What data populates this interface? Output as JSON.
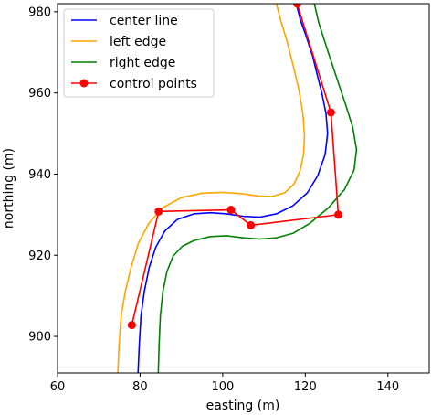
{
  "chart_data": {
    "type": "line",
    "title": "",
    "xlabel": "easting (m)",
    "ylabel": "northing (m)",
    "xlim": [
      60,
      150
    ],
    "ylim": [
      891,
      982
    ],
    "xticks": [
      60,
      80,
      100,
      120,
      140
    ],
    "yticks": [
      900,
      920,
      940,
      960,
      980
    ],
    "grid": false,
    "legend_placement": "top-left",
    "series": [
      {
        "name": "center line",
        "color": "#0000ff",
        "marker": "none",
        "points": [
          [
            79.5,
            891
          ],
          [
            79.8,
            898
          ],
          [
            80.2,
            905
          ],
          [
            81,
            911
          ],
          [
            82.2,
            917
          ],
          [
            83.8,
            922
          ],
          [
            86,
            926
          ],
          [
            89,
            928.8
          ],
          [
            93,
            930.2
          ],
          [
            97,
            930.5
          ],
          [
            101,
            930.2
          ],
          [
            105,
            929.6
          ],
          [
            109,
            929.4
          ],
          [
            113,
            930.2
          ],
          [
            117,
            932.2
          ],
          [
            120.5,
            935.4
          ],
          [
            123,
            939.6
          ],
          [
            124.8,
            944.8
          ],
          [
            125.4,
            950
          ],
          [
            125,
            955
          ],
          [
            124,
            960
          ],
          [
            123,
            964
          ],
          [
            121.8,
            969
          ],
          [
            120.2,
            974
          ],
          [
            118.8,
            978
          ],
          [
            117.8,
            982
          ]
        ]
      },
      {
        "name": "left edge",
        "color": "#ffa500",
        "marker": "none",
        "points": [
          [
            74.6,
            891
          ],
          [
            74.9,
            898
          ],
          [
            75.4,
            905
          ],
          [
            76.4,
            911
          ],
          [
            77.8,
            917
          ],
          [
            79.6,
            923
          ],
          [
            82.2,
            928
          ],
          [
            85.6,
            931.8
          ],
          [
            90,
            934.2
          ],
          [
            95,
            935.3
          ],
          [
            100,
            935.5
          ],
          [
            104.5,
            935.2
          ],
          [
            108.5,
            934.6
          ],
          [
            112,
            934.5
          ],
          [
            115,
            935.4
          ],
          [
            117.3,
            937.6
          ],
          [
            118.8,
            941
          ],
          [
            119.6,
            945
          ],
          [
            119.8,
            949.5
          ],
          [
            119.4,
            955
          ],
          [
            118.4,
            961
          ],
          [
            117,
            967
          ],
          [
            115.5,
            973
          ],
          [
            114,
            978
          ],
          [
            113,
            982
          ]
        ]
      },
      {
        "name": "right edge",
        "color": "#008000",
        "marker": "none",
        "points": [
          [
            84.4,
            891
          ],
          [
            84.6,
            898
          ],
          [
            84.9,
            905
          ],
          [
            85.5,
            911
          ],
          [
            86.5,
            916
          ],
          [
            88,
            919.8
          ],
          [
            90.2,
            922.2
          ],
          [
            93,
            923.6
          ],
          [
            97,
            924.6
          ],
          [
            101,
            924.8
          ],
          [
            105,
            924.3
          ],
          [
            109,
            924
          ],
          [
            113,
            924.3
          ],
          [
            117,
            925.4
          ],
          [
            121,
            927.8
          ],
          [
            125.5,
            931.6
          ],
          [
            129.5,
            936.2
          ],
          [
            131.8,
            941
          ],
          [
            132.4,
            946
          ],
          [
            131.5,
            951.5
          ],
          [
            129.8,
            957
          ],
          [
            128,
            962.5
          ],
          [
            126.2,
            968
          ],
          [
            124.6,
            973
          ],
          [
            123.2,
            977.5
          ],
          [
            122.2,
            982
          ]
        ]
      },
      {
        "name": "control points",
        "color": "#ff0000",
        "marker": "circle",
        "points": [
          [
            78,
            902.8
          ],
          [
            84.5,
            930.8
          ],
          [
            102,
            931.2
          ],
          [
            106.8,
            927.4
          ],
          [
            128,
            930
          ],
          [
            126.2,
            955.2
          ],
          [
            118,
            982
          ]
        ]
      }
    ]
  }
}
